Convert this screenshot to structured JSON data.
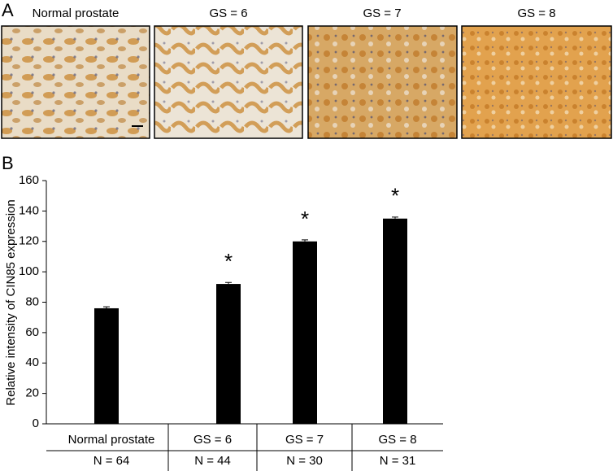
{
  "panel_labels": [
    "A",
    "B"
  ],
  "chart_data": {
    "type": "bar",
    "ylabel": "Relative intensity of CIN85 expression",
    "categories": [
      "Normal prostate",
      "GS = 6",
      "GS = 7",
      "GS = 8"
    ],
    "values": [
      76,
      92,
      120,
      135
    ],
    "errors": [
      1,
      1,
      1,
      1
    ],
    "significance": [
      null,
      "*",
      "*",
      "*"
    ],
    "counts": [
      "N = 64",
      "N = 44",
      "N = 30",
      "N = 31"
    ],
    "color": "#000000",
    "ylim": [
      0,
      160
    ],
    "yticks": [
      0,
      20,
      40,
      60,
      80,
      100,
      120,
      140,
      160
    ]
  }
}
